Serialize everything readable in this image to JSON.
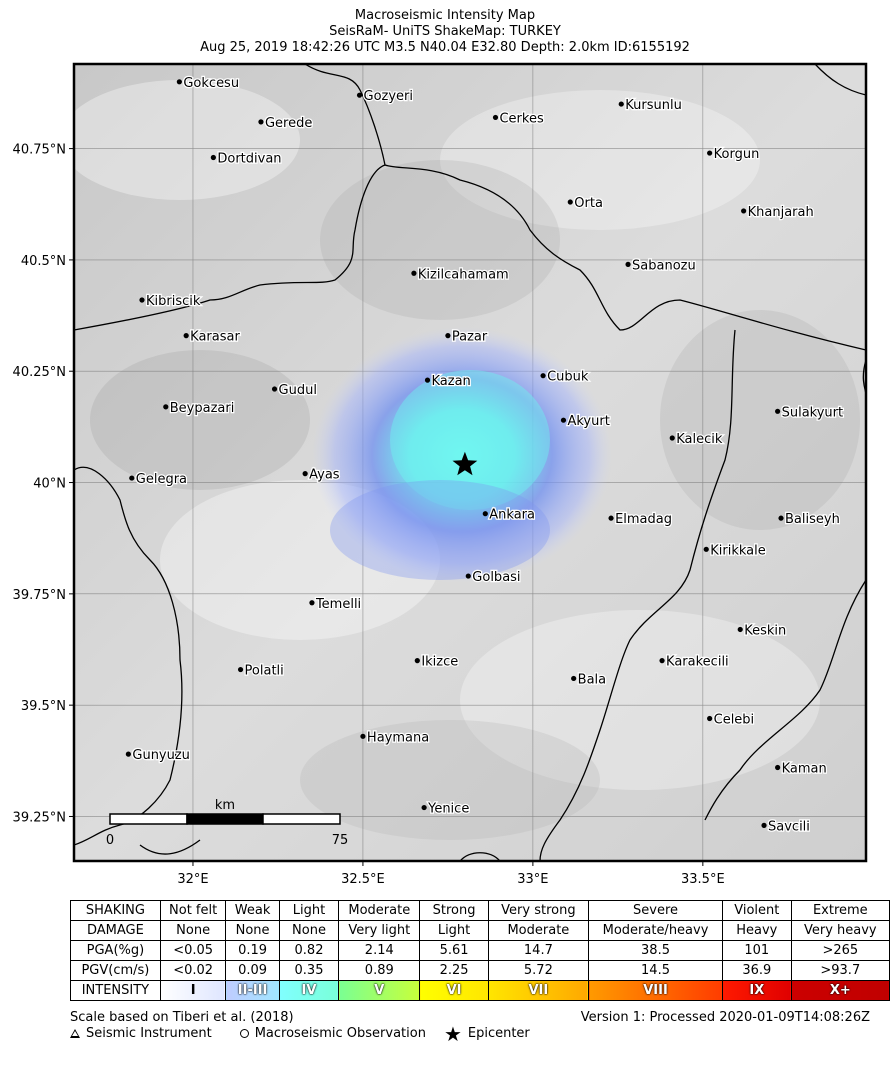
{
  "title": {
    "line1": "Macroseismic Intensity Map",
    "line2": "SeisRaM- UniTS ShakeMap: TURKEY",
    "line3": "Aug 25, 2019 18:42:26 UTC M3.5 N40.04 E32.80 Depth: 2.0km ID:6155192"
  },
  "map": {
    "lon_min": 31.65,
    "lon_max": 33.98,
    "lat_min": 39.15,
    "lat_max": 40.94,
    "x_ticks": [
      {
        "value": 32.0,
        "label": "32°E"
      },
      {
        "value": 32.5,
        "label": "32.5°E"
      },
      {
        "value": 33.0,
        "label": "33°E"
      },
      {
        "value": 33.5,
        "label": "33.5°E"
      }
    ],
    "y_ticks": [
      {
        "value": 40.75,
        "label": "40.75°N"
      },
      {
        "value": 40.5,
        "label": "40.5°N"
      },
      {
        "value": 40.25,
        "label": "40.25°N"
      },
      {
        "value": 40.0,
        "label": "40°N"
      },
      {
        "value": 39.75,
        "label": "39.75°N"
      },
      {
        "value": 39.5,
        "label": "39.5°N"
      },
      {
        "value": 39.25,
        "label": "39.25°N"
      }
    ],
    "epicenter": {
      "lon": 32.8,
      "lat": 40.04
    },
    "scale_bar": {
      "unit": "km",
      "start_label": "0",
      "end_label": "75"
    },
    "cities": [
      {
        "name": "Gokcesu",
        "lon": 31.96,
        "lat": 40.9
      },
      {
        "name": "Gozyeri",
        "lon": 32.49,
        "lat": 40.87
      },
      {
        "name": "Gerede",
        "lon": 32.2,
        "lat": 40.81
      },
      {
        "name": "Cerkes",
        "lon": 32.89,
        "lat": 40.82
      },
      {
        "name": "Kursunlu",
        "lon": 33.26,
        "lat": 40.85
      },
      {
        "name": "Dortdivan",
        "lon": 32.06,
        "lat": 40.73
      },
      {
        "name": "Korgun",
        "lon": 33.52,
        "lat": 40.74
      },
      {
        "name": "Orta",
        "lon": 33.11,
        "lat": 40.63
      },
      {
        "name": "Khanjarah",
        "lon": 33.62,
        "lat": 40.61
      },
      {
        "name": "Kizilcahamam",
        "lon": 32.65,
        "lat": 40.47
      },
      {
        "name": "Sabanozu",
        "lon": 33.28,
        "lat": 40.49
      },
      {
        "name": "Kibriscik",
        "lon": 31.85,
        "lat": 40.41
      },
      {
        "name": "Karasar",
        "lon": 31.98,
        "lat": 40.33
      },
      {
        "name": "Pazar",
        "lon": 32.75,
        "lat": 40.33
      },
      {
        "name": "Kazan",
        "lon": 32.69,
        "lat": 40.23
      },
      {
        "name": "Cubuk",
        "lon": 33.03,
        "lat": 40.24
      },
      {
        "name": "Gudul",
        "lon": 32.24,
        "lat": 40.21
      },
      {
        "name": "Beypazari",
        "lon": 31.92,
        "lat": 40.17
      },
      {
        "name": "Sulakyurt",
        "lon": 33.72,
        "lat": 40.16
      },
      {
        "name": "Akyurt",
        "lon": 33.09,
        "lat": 40.14
      },
      {
        "name": "Kalecik",
        "lon": 33.41,
        "lat": 40.1
      },
      {
        "name": "Ayas",
        "lon": 32.33,
        "lat": 40.02
      },
      {
        "name": "Gelegra",
        "lon": 31.82,
        "lat": 40.01
      },
      {
        "name": "Ankara",
        "lon": 32.86,
        "lat": 39.93
      },
      {
        "name": "Elmadag",
        "lon": 33.23,
        "lat": 39.92
      },
      {
        "name": "Baliseyh",
        "lon": 33.73,
        "lat": 39.92
      },
      {
        "name": "Kirikkale",
        "lon": 33.51,
        "lat": 39.85
      },
      {
        "name": "Golbasi",
        "lon": 32.81,
        "lat": 39.79
      },
      {
        "name": "Temelli",
        "lon": 32.35,
        "lat": 39.73
      },
      {
        "name": "Keskin",
        "lon": 33.61,
        "lat": 39.67
      },
      {
        "name": "Polatli",
        "lon": 32.14,
        "lat": 39.58
      },
      {
        "name": "Ikizce",
        "lon": 32.66,
        "lat": 39.6
      },
      {
        "name": "Karakecili",
        "lon": 33.38,
        "lat": 39.6
      },
      {
        "name": "Bala",
        "lon": 33.12,
        "lat": 39.56
      },
      {
        "name": "Celebi",
        "lon": 33.52,
        "lat": 39.47
      },
      {
        "name": "Haymana",
        "lon": 32.5,
        "lat": 39.43
      },
      {
        "name": "Gunyuzu",
        "lon": 31.81,
        "lat": 39.39
      },
      {
        "name": "Kaman",
        "lon": 33.72,
        "lat": 39.36
      },
      {
        "name": "Yenice",
        "lon": 32.68,
        "lat": 39.27
      },
      {
        "name": "Savcili",
        "lon": 33.68,
        "lat": 39.23
      }
    ]
  },
  "legend": {
    "rows": [
      {
        "label": "SHAKING",
        "cells": [
          "Not felt",
          "Weak",
          "Light",
          "Moderate",
          "Strong",
          "Very strong",
          "Severe",
          "Violent",
          "Extreme"
        ]
      },
      {
        "label": "DAMAGE",
        "cells": [
          "None",
          "None",
          "None",
          "Very light",
          "Light",
          "Moderate",
          "Moderate/heavy",
          "Heavy",
          "Very heavy"
        ]
      },
      {
        "label": "PGA(%g)",
        "cells": [
          "<0.05",
          "0.19",
          "0.82",
          "2.14",
          "5.61",
          "14.7",
          "38.5",
          "101",
          ">265"
        ]
      },
      {
        "label": "PGV(cm/s)",
        "cells": [
          "<0.02",
          "0.09",
          "0.35",
          "0.89",
          "2.25",
          "5.72",
          "14.5",
          "36.9",
          ">93.7"
        ]
      }
    ],
    "intensity_label": "INTENSITY",
    "intensity": [
      {
        "label": "I",
        "from": "#ffffff",
        "to": "#dfe6ff"
      },
      {
        "label": "II-III",
        "from": "#bfccff",
        "to": "#a0e6ff"
      },
      {
        "label": "IV",
        "from": "#80ffff",
        "to": "#7affd9"
      },
      {
        "label": "V",
        "from": "#7aff93",
        "to": "#c8ff3a"
      },
      {
        "label": "VI",
        "from": "#ffff00",
        "to": "#ffe600"
      },
      {
        "label": "VII",
        "from": "#ffe600",
        "to": "#ffa800"
      },
      {
        "label": "VIII",
        "from": "#ff9a00",
        "to": "#ff3c00"
      },
      {
        "label": "IX",
        "from": "#ff1a00",
        "to": "#e00000"
      },
      {
        "label": "X+",
        "from": "#cc0000",
        "to": "#c00000"
      }
    ]
  },
  "footer": {
    "scale_note": "Scale based on Tiberi et al. (2018)",
    "version": "Version 1: Processed 2020-01-09T14:08:26Z",
    "seismic_instrument": "Seismic Instrument",
    "macroseismic_observation": "Macroseismic Observation",
    "epicenter": "Epicenter"
  }
}
